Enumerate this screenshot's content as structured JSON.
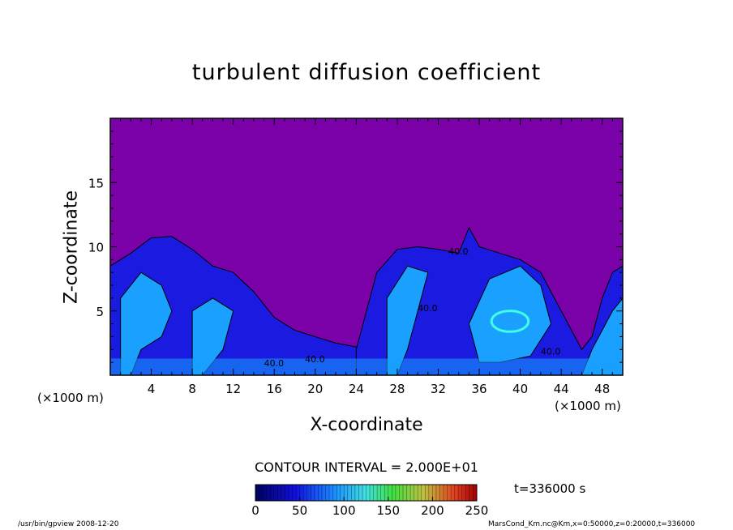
{
  "chart_data": {
    "type": "heatmap",
    "title": "turbulent diffusion coefficient",
    "xlabel": "X-coordinate",
    "ylabel": "Z-coordinate",
    "x_unit": "(×1000 m)",
    "y_unit": "(×1000 m)",
    "xlim": [
      0,
      50
    ],
    "ylim": [
      0,
      20
    ],
    "x_ticks": [
      4,
      8,
      12,
      16,
      20,
      24,
      28,
      32,
      36,
      40,
      44,
      48
    ],
    "y_ticks": [
      5,
      10,
      15
    ],
    "contour_interval": "CONTOUR INTERVAL = 2.000E+01",
    "contour_labels": [
      "40.0",
      "40.0",
      "40.0",
      "40.0",
      "40.0"
    ],
    "colorbar": {
      "min": 0,
      "max": 250,
      "ticks": [
        0,
        50,
        100,
        150,
        200,
        250
      ]
    },
    "colors": {
      "background_field": "#7a00a8",
      "low": "#1a1ae0",
      "mid": "#1aa0ff",
      "high": "#40ffe0"
    }
  },
  "time_label": "t=336000 s",
  "footer_left": "/usr/bin/gpview   2008-12-20",
  "footer_right": "MarsCond_Km.nc@Km,x=0:50000,z=0:20000,t=336000"
}
